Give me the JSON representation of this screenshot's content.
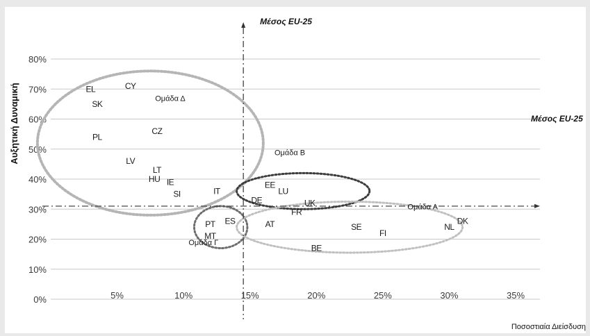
{
  "chart_data": {
    "type": "scatter",
    "xlabel": "Ποσοστιαία Διείσδυση",
    "ylabel": "Αυξητική Δυναμική",
    "x_unit": "%",
    "y_unit": "%",
    "xlim": [
      0,
      35
    ],
    "ylim": [
      0,
      80
    ],
    "x_ticks": [
      "5%",
      "10%",
      "15%",
      "20%",
      "25%",
      "30%",
      "35%"
    ],
    "y_ticks": [
      "0%",
      "10%",
      "20%",
      "30%",
      "40%",
      "50%",
      "60%",
      "70%",
      "80%"
    ],
    "grid": "horizontal",
    "reference_lines": [
      {
        "axis": "x",
        "value": 14.5,
        "label": "Μέσος EU-25"
      },
      {
        "axis": "y",
        "value": 31,
        "label": "Μέσος EU-25"
      }
    ],
    "points": [
      {
        "label": "EL",
        "x": 3,
        "y": 70
      },
      {
        "label": "CY",
        "x": 6,
        "y": 71
      },
      {
        "label": "SK",
        "x": 3.5,
        "y": 65
      },
      {
        "label": "PL",
        "x": 3.5,
        "y": 54
      },
      {
        "label": "CZ",
        "x": 8,
        "y": 56
      },
      {
        "label": "LV",
        "x": 6,
        "y": 46
      },
      {
        "label": "LT",
        "x": 8,
        "y": 43
      },
      {
        "label": "HU",
        "x": 7.8,
        "y": 40
      },
      {
        "label": "IE",
        "x": 9,
        "y": 39
      },
      {
        "label": "SI",
        "x": 9.5,
        "y": 35
      },
      {
        "label": "IT",
        "x": 12.5,
        "y": 36
      },
      {
        "label": "ES",
        "x": 13.5,
        "y": 26
      },
      {
        "label": "PT",
        "x": 12,
        "y": 25
      },
      {
        "label": "MT",
        "x": 12,
        "y": 21
      },
      {
        "label": "EE",
        "x": 16.5,
        "y": 38
      },
      {
        "label": "LU",
        "x": 17.5,
        "y": 36
      },
      {
        "label": "DE",
        "x": 15.5,
        "y": 33
      },
      {
        "label": "UK",
        "x": 19.5,
        "y": 32
      },
      {
        "label": "FR",
        "x": 18.5,
        "y": 29
      },
      {
        "label": "AT",
        "x": 16.5,
        "y": 25
      },
      {
        "label": "SE",
        "x": 23,
        "y": 24
      },
      {
        "label": "FI",
        "x": 25,
        "y": 22
      },
      {
        "label": "BE",
        "x": 20,
        "y": 17
      },
      {
        "label": "NL",
        "x": 30,
        "y": 24
      },
      {
        "label": "DK",
        "x": 31,
        "y": 26
      }
    ],
    "groups": [
      {
        "label": "Ομάδα Δ",
        "label_at": [
          9,
          66
        ],
        "center": [
          7.5,
          52
        ],
        "radius": [
          8.5,
          24
        ],
        "color": "#b5b5b5",
        "stroke_width": 4
      },
      {
        "label": "Ομάδα Β",
        "label_at": [
          18,
          48
        ],
        "center": [
          19,
          36
        ],
        "radius": [
          5,
          6
        ],
        "color": "#3c3c3c",
        "stroke_width": 3
      },
      {
        "label": "Ομάδα Γ",
        "label_at": [
          11.5,
          18
        ],
        "center": [
          12.8,
          24
        ],
        "radius": [
          2,
          7
        ],
        "color": "#6e6e6e",
        "stroke_width": 3
      },
      {
        "label": "Ομάδα Α",
        "label_at": [
          28,
          30
        ],
        "center": [
          22.5,
          24
        ],
        "radius": [
          8.5,
          8.5
        ],
        "color": "#c0c0c0",
        "stroke_width": 3
      }
    ]
  }
}
